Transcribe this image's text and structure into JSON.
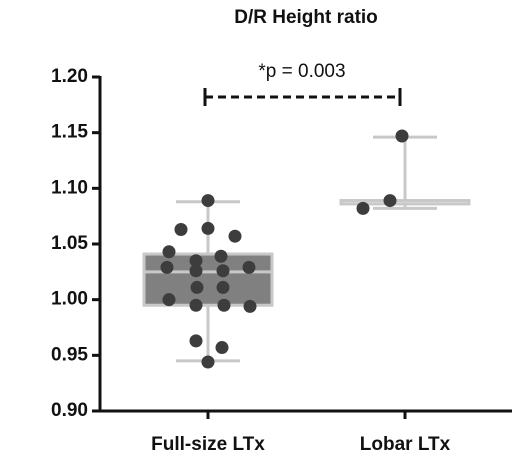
{
  "chart_data": {
    "type": "box",
    "title": "D/R Height ratio",
    "annotation": "*p = 0.003",
    "categories": [
      "Full-size LTx",
      "Lobar LTx"
    ],
    "boxes": [
      {
        "min": 0.945,
        "q1": 0.995,
        "median": 1.025,
        "q3": 1.041,
        "max": 1.088
      },
      {
        "min": 1.082,
        "q1": 1.086,
        "median": 1.089,
        "q3": 1.089,
        "max": 1.146
      }
    ],
    "points": [
      [
        1.089,
        1.063,
        1.064,
        1.057,
        1.043,
        1.035,
        1.039,
        1.029,
        1.029,
        1.026,
        1.026,
        1.011,
        1.011,
        1.0,
        0.995,
        0.995,
        0.994,
        0.963,
        0.957,
        0.944
      ],
      [
        1.082,
        1.089,
        1.147
      ]
    ],
    "box_color": "#808080",
    "whisker_color": "#c8c8c8",
    "point_color": "#3d3d3d",
    "ylim": [
      0.9,
      1.2
    ],
    "yticks": [
      {
        "value": 0.9,
        "label": "0.90"
      },
      {
        "value": 0.95,
        "label": "0.95"
      },
      {
        "value": 1.0,
        "label": "1.00"
      },
      {
        "value": 1.05,
        "label": "1.05"
      },
      {
        "value": 1.1,
        "label": "1.10"
      },
      {
        "value": 1.15,
        "label": "1.15"
      },
      {
        "value": 1.2,
        "label": "1.20"
      }
    ]
  }
}
